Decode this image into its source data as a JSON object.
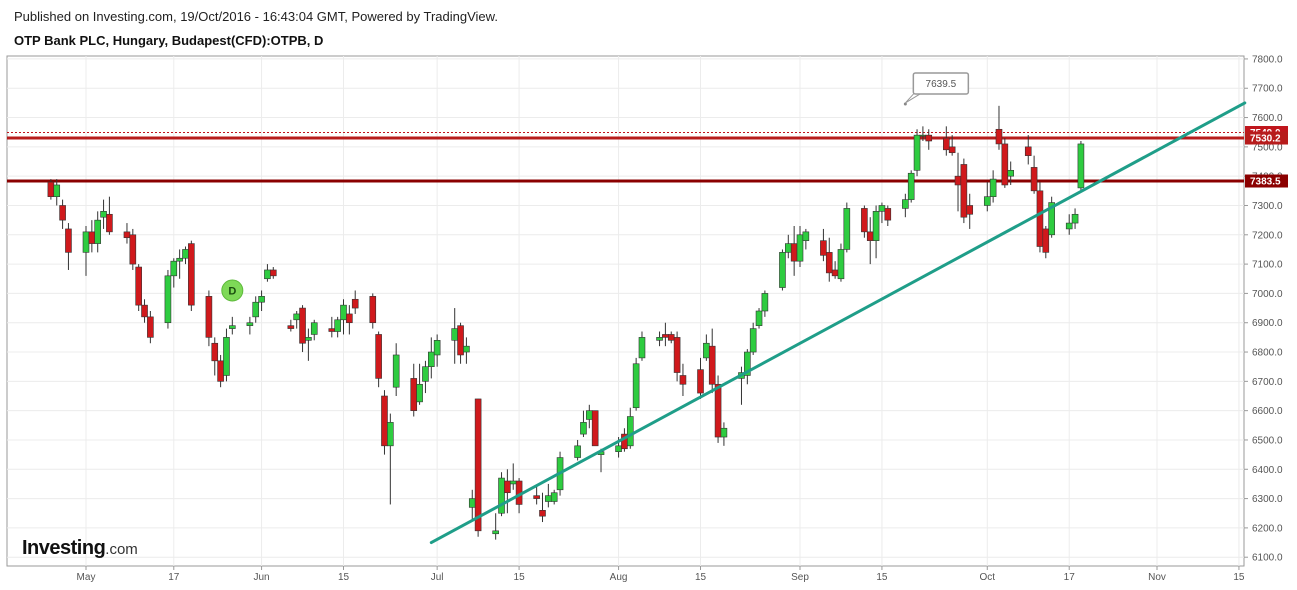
{
  "header": {
    "published": "Published on Investing.com, 19/Oct/2016 - 16:43:04 GMT, Powered by TradingView.",
    "title": "OTP Bank PLC, Hungary, Budapest(CFD):OTPB, D"
  },
  "logo": {
    "brand": "Investing",
    "suffix": ".com"
  },
  "chart_data": {
    "type": "candlestick",
    "ylim": [
      6070,
      7810
    ],
    "yticks": [
      6100,
      6200,
      6300,
      6400,
      6500,
      6600,
      6700,
      6800,
      6900,
      7000,
      7100,
      7200,
      7300,
      7400,
      7500,
      7600,
      7700,
      7800
    ],
    "ytick_labels": [
      "6100.0",
      "6200.0",
      "6300.0",
      "6400.0",
      "6500.0",
      "6600.0",
      "6700.0",
      "6800.0",
      "6900.0",
      "7000.0",
      "7100.0",
      "7200.0",
      "7300.0",
      "7400.0",
      "7500.0",
      "7600.0",
      "7700.0",
      "7800.0"
    ],
    "xticks": [
      {
        "label": "May",
        "date": "2016-05-02"
      },
      {
        "label": "17",
        "date": "2016-05-17"
      },
      {
        "label": "Jun",
        "date": "2016-06-01"
      },
      {
        "label": "15",
        "date": "2016-06-15"
      },
      {
        "label": "Jul",
        "date": "2016-07-01"
      },
      {
        "label": "15",
        "date": "2016-07-15"
      },
      {
        "label": "Aug",
        "date": "2016-08-01"
      },
      {
        "label": "15",
        "date": "2016-08-15"
      },
      {
        "label": "Sep",
        "date": "2016-09-01"
      },
      {
        "label": "15",
        "date": "2016-09-15"
      },
      {
        "label": "Oct",
        "date": "2016-10-03"
      },
      {
        "label": "17",
        "date": "2016-10-17"
      },
      {
        "label": "Nov",
        "date": "2016-11-01"
      },
      {
        "label": "15",
        "date": "2016-11-15"
      }
    ],
    "horizontal_lines": [
      {
        "value": 7549.0,
        "label": "7549.0",
        "style": "dotted",
        "color": "#c0161d"
      },
      {
        "value": 7530.2,
        "label": "7530.2",
        "style": "solid",
        "color": "#b71c1c"
      },
      {
        "value": 7383.5,
        "label": "7383.5",
        "style": "solid",
        "color": "#8b0000"
      }
    ],
    "trendline": {
      "start": {
        "date": "2016-06-30",
        "value": 6150
      },
      "end": {
        "date": "2016-11-16",
        "value": 7650
      },
      "color": "#1f9e89"
    },
    "callout": {
      "date": "2016-09-19",
      "value": 7639.5,
      "label": "7639.5"
    },
    "dividend_marker": {
      "date": "2016-05-27",
      "value": 7010,
      "label": "D"
    },
    "colors": {
      "up": "#2ecc40",
      "down": "#d0191c",
      "outline": "#333333"
    },
    "candles": [
      {
        "d": "2016-04-26",
        "o": 7380,
        "h": 7390,
        "l": 7320,
        "c": 7330
      },
      {
        "d": "2016-04-27",
        "o": 7330,
        "h": 7390,
        "l": 7300,
        "c": 7370
      },
      {
        "d": "2016-04-28",
        "o": 7300,
        "h": 7320,
        "l": 7220,
        "c": 7250
      },
      {
        "d": "2016-04-29",
        "o": 7220,
        "h": 7240,
        "l": 7080,
        "c": 7140
      },
      {
        "d": "2016-05-02",
        "o": 7140,
        "h": 7230,
        "l": 7060,
        "c": 7210
      },
      {
        "d": "2016-05-03",
        "o": 7210,
        "h": 7250,
        "l": 7140,
        "c": 7170
      },
      {
        "d": "2016-05-04",
        "o": 7170,
        "h": 7280,
        "l": 7140,
        "c": 7250
      },
      {
        "d": "2016-05-05",
        "o": 7260,
        "h": 7320,
        "l": 7220,
        "c": 7280
      },
      {
        "d": "2016-05-06",
        "o": 7270,
        "h": 7330,
        "l": 7200,
        "c": 7210
      },
      {
        "d": "2016-05-09",
        "o": 7210,
        "h": 7240,
        "l": 7170,
        "c": 7190
      },
      {
        "d": "2016-05-10",
        "o": 7200,
        "h": 7220,
        "l": 7080,
        "c": 7100
      },
      {
        "d": "2016-05-11",
        "o": 7090,
        "h": 7100,
        "l": 6940,
        "c": 6960
      },
      {
        "d": "2016-05-12",
        "o": 6960,
        "h": 6980,
        "l": 6900,
        "c": 6920
      },
      {
        "d": "2016-05-13",
        "o": 6920,
        "h": 6940,
        "l": 6830,
        "c": 6850
      },
      {
        "d": "2016-05-16",
        "o": 6900,
        "h": 7080,
        "l": 6880,
        "c": 7060
      },
      {
        "d": "2016-05-17",
        "o": 7060,
        "h": 7120,
        "l": 7020,
        "c": 7110
      },
      {
        "d": "2016-05-18",
        "o": 7110,
        "h": 7150,
        "l": 7050,
        "c": 7120
      },
      {
        "d": "2016-05-19",
        "o": 7120,
        "h": 7160,
        "l": 7100,
        "c": 7150
      },
      {
        "d": "2016-05-20",
        "o": 7170,
        "h": 7180,
        "l": 6940,
        "c": 6960
      },
      {
        "d": "2016-05-23",
        "o": 6990,
        "h": 7010,
        "l": 6820,
        "c": 6850
      },
      {
        "d": "2016-05-24",
        "o": 6830,
        "h": 6850,
        "l": 6720,
        "c": 6770
      },
      {
        "d": "2016-05-25",
        "o": 6770,
        "h": 6790,
        "l": 6680,
        "c": 6700
      },
      {
        "d": "2016-05-26",
        "o": 6720,
        "h": 6880,
        "l": 6700,
        "c": 6850
      },
      {
        "d": "2016-05-27",
        "o": 6880,
        "h": 6920,
        "l": 6860,
        "c": 6890
      },
      {
        "d": "2016-05-30",
        "o": 6890,
        "h": 6920,
        "l": 6860,
        "c": 6900
      },
      {
        "d": "2016-05-31",
        "o": 6920,
        "h": 6990,
        "l": 6900,
        "c": 6970
      },
      {
        "d": "2016-06-01",
        "o": 6970,
        "h": 7010,
        "l": 6940,
        "c": 6990
      },
      {
        "d": "2016-06-02",
        "o": 7050,
        "h": 7100,
        "l": 7040,
        "c": 7080
      },
      {
        "d": "2016-06-03",
        "o": 7080,
        "h": 7090,
        "l": 7050,
        "c": 7060
      },
      {
        "d": "2016-06-06",
        "o": 6890,
        "h": 6910,
        "l": 6870,
        "c": 6880
      },
      {
        "d": "2016-06-07",
        "o": 6910,
        "h": 6940,
        "l": 6880,
        "c": 6930
      },
      {
        "d": "2016-06-08",
        "o": 6950,
        "h": 6960,
        "l": 6800,
        "c": 6830
      },
      {
        "d": "2016-06-09",
        "o": 6840,
        "h": 6880,
        "l": 6770,
        "c": 6850
      },
      {
        "d": "2016-06-10",
        "o": 6860,
        "h": 6910,
        "l": 6840,
        "c": 6900
      },
      {
        "d": "2016-06-13",
        "o": 6880,
        "h": 6920,
        "l": 6850,
        "c": 6870
      },
      {
        "d": "2016-06-14",
        "o": 6870,
        "h": 6920,
        "l": 6850,
        "c": 6910
      },
      {
        "d": "2016-06-15",
        "o": 6910,
        "h": 6980,
        "l": 6860,
        "c": 6960
      },
      {
        "d": "2016-06-16",
        "o": 6930,
        "h": 6960,
        "l": 6860,
        "c": 6900
      },
      {
        "d": "2016-06-17",
        "o": 6980,
        "h": 7010,
        "l": 6930,
        "c": 6950
      },
      {
        "d": "2016-06-20",
        "o": 6990,
        "h": 7000,
        "l": 6880,
        "c": 6900
      },
      {
        "d": "2016-06-21",
        "o": 6860,
        "h": 6870,
        "l": 6680,
        "c": 6710
      },
      {
        "d": "2016-06-22",
        "o": 6650,
        "h": 6670,
        "l": 6450,
        "c": 6480
      },
      {
        "d": "2016-06-23",
        "o": 6480,
        "h": 6590,
        "l": 6280,
        "c": 6560
      },
      {
        "d": "2016-06-24",
        "o": 6680,
        "h": 6830,
        "l": 6650,
        "c": 6790
      },
      {
        "d": "2016-06-27",
        "o": 6710,
        "h": 6760,
        "l": 6580,
        "c": 6600
      },
      {
        "d": "2016-06-28",
        "o": 6630,
        "h": 6760,
        "l": 6620,
        "c": 6690
      },
      {
        "d": "2016-06-29",
        "o": 6700,
        "h": 6770,
        "l": 6660,
        "c": 6750
      },
      {
        "d": "2016-06-30",
        "o": 6750,
        "h": 6850,
        "l": 6710,
        "c": 6800
      },
      {
        "d": "2016-07-01",
        "o": 6790,
        "h": 6860,
        "l": 6750,
        "c": 6840
      },
      {
        "d": "2016-07-04",
        "o": 6840,
        "h": 6950,
        "l": 6760,
        "c": 6880
      },
      {
        "d": "2016-07-05",
        "o": 6890,
        "h": 6900,
        "l": 6760,
        "c": 6790
      },
      {
        "d": "2016-07-06",
        "o": 6800,
        "h": 6850,
        "l": 6760,
        "c": 6820
      },
      {
        "d": "2016-07-07",
        "o": 6270,
        "h": 6330,
        "l": 6230,
        "c": 6300
      },
      {
        "d": "2016-07-08",
        "o": 6640,
        "h": 6640,
        "l": 6170,
        "c": 6190
      },
      {
        "d": "2016-07-11",
        "o": 6180,
        "h": 6250,
        "l": 6160,
        "c": 6190
      },
      {
        "d": "2016-07-12",
        "o": 6250,
        "h": 6390,
        "l": 6240,
        "c": 6370
      },
      {
        "d": "2016-07-13",
        "o": 6360,
        "h": 6400,
        "l": 6250,
        "c": 6320
      },
      {
        "d": "2016-07-14",
        "o": 6350,
        "h": 6420,
        "l": 6330,
        "c": 6360
      },
      {
        "d": "2016-07-15",
        "o": 6360,
        "h": 6370,
        "l": 6250,
        "c": 6280
      },
      {
        "d": "2016-07-18",
        "o": 6310,
        "h": 6340,
        "l": 6280,
        "c": 6300
      },
      {
        "d": "2016-07-19",
        "o": 6260,
        "h": 6320,
        "l": 6220,
        "c": 6240
      },
      {
        "d": "2016-07-20",
        "o": 6290,
        "h": 6350,
        "l": 6270,
        "c": 6310
      },
      {
        "d": "2016-07-21",
        "o": 6290,
        "h": 6330,
        "l": 6280,
        "c": 6320
      },
      {
        "d": "2016-07-22",
        "o": 6330,
        "h": 6460,
        "l": 6310,
        "c": 6440
      },
      {
        "d": "2016-07-25",
        "o": 6440,
        "h": 6500,
        "l": 6430,
        "c": 6480
      },
      {
        "d": "2016-07-26",
        "o": 6520,
        "h": 6600,
        "l": 6510,
        "c": 6560
      },
      {
        "d": "2016-07-27",
        "o": 6570,
        "h": 6620,
        "l": 6540,
        "c": 6600
      },
      {
        "d": "2016-07-28",
        "o": 6600,
        "h": 6600,
        "l": 6490,
        "c": 6480
      },
      {
        "d": "2016-07-29",
        "o": 6450,
        "h": 6470,
        "l": 6390,
        "c": 6460
      },
      {
        "d": "2016-08-01",
        "o": 6460,
        "h": 6510,
        "l": 6440,
        "c": 6480
      },
      {
        "d": "2016-08-02",
        "o": 6520,
        "h": 6540,
        "l": 6460,
        "c": 6470
      },
      {
        "d": "2016-08-03",
        "o": 6480,
        "h": 6610,
        "l": 6470,
        "c": 6580
      },
      {
        "d": "2016-08-04",
        "o": 6610,
        "h": 6780,
        "l": 6600,
        "c": 6760
      },
      {
        "d": "2016-08-05",
        "o": 6780,
        "h": 6870,
        "l": 6770,
        "c": 6850
      },
      {
        "d": "2016-08-08",
        "o": 6840,
        "h": 6870,
        "l": 6820,
        "c": 6850
      },
      {
        "d": "2016-08-09",
        "o": 6860,
        "h": 6900,
        "l": 6820,
        "c": 6850
      },
      {
        "d": "2016-08-10",
        "o": 6860,
        "h": 6870,
        "l": 6830,
        "c": 6840
      },
      {
        "d": "2016-08-11",
        "o": 6850,
        "h": 6870,
        "l": 6700,
        "c": 6730
      },
      {
        "d": "2016-08-12",
        "o": 6720,
        "h": 6760,
        "l": 6650,
        "c": 6690
      },
      {
        "d": "2016-08-15",
        "o": 6740,
        "h": 6780,
        "l": 6640,
        "c": 6660
      },
      {
        "d": "2016-08-16",
        "o": 6780,
        "h": 6860,
        "l": 6770,
        "c": 6830
      },
      {
        "d": "2016-08-17",
        "o": 6820,
        "h": 6880,
        "l": 6660,
        "c": 6690
      },
      {
        "d": "2016-08-18",
        "o": 6690,
        "h": 6720,
        "l": 6490,
        "c": 6510
      },
      {
        "d": "2016-08-19",
        "o": 6510,
        "h": 6560,
        "l": 6480,
        "c": 6540
      },
      {
        "d": "2016-08-22",
        "o": 6710,
        "h": 6750,
        "l": 6620,
        "c": 6730
      },
      {
        "d": "2016-08-23",
        "o": 6720,
        "h": 6810,
        "l": 6690,
        "c": 6800
      },
      {
        "d": "2016-08-24",
        "o": 6800,
        "h": 6900,
        "l": 6790,
        "c": 6880
      },
      {
        "d": "2016-08-25",
        "o": 6890,
        "h": 6950,
        "l": 6880,
        "c": 6940
      },
      {
        "d": "2016-08-26",
        "o": 6940,
        "h": 7010,
        "l": 6920,
        "c": 7000
      },
      {
        "d": "2016-08-29",
        "o": 7020,
        "h": 7150,
        "l": 7010,
        "c": 7140
      },
      {
        "d": "2016-08-30",
        "o": 7140,
        "h": 7200,
        "l": 7120,
        "c": 7170
      },
      {
        "d": "2016-08-31",
        "o": 7170,
        "h": 7230,
        "l": 7060,
        "c": 7110
      },
      {
        "d": "2016-09-01",
        "o": 7110,
        "h": 7230,
        "l": 7090,
        "c": 7200
      },
      {
        "d": "2016-09-02",
        "o": 7180,
        "h": 7220,
        "l": 7150,
        "c": 7210
      },
      {
        "d": "2016-09-05",
        "o": 7180,
        "h": 7220,
        "l": 7110,
        "c": 7130
      },
      {
        "d": "2016-09-06",
        "o": 7140,
        "h": 7190,
        "l": 7040,
        "c": 7070
      },
      {
        "d": "2016-09-07",
        "o": 7080,
        "h": 7110,
        "l": 7050,
        "c": 7060
      },
      {
        "d": "2016-09-08",
        "o": 7050,
        "h": 7170,
        "l": 7040,
        "c": 7150
      },
      {
        "d": "2016-09-09",
        "o": 7150,
        "h": 7310,
        "l": 7140,
        "c": 7290
      },
      {
        "d": "2016-09-12",
        "o": 7290,
        "h": 7300,
        "l": 7190,
        "c": 7210
      },
      {
        "d": "2016-09-13",
        "o": 7210,
        "h": 7260,
        "l": 7100,
        "c": 7180
      },
      {
        "d": "2016-09-14",
        "o": 7180,
        "h": 7300,
        "l": 7120,
        "c": 7280
      },
      {
        "d": "2016-09-15",
        "o": 7280,
        "h": 7310,
        "l": 7240,
        "c": 7300
      },
      {
        "d": "2016-09-16",
        "o": 7290,
        "h": 7300,
        "l": 7230,
        "c": 7250
      },
      {
        "d": "2016-09-19",
        "o": 7290,
        "h": 7340,
        "l": 7260,
        "c": 7320
      },
      {
        "d": "2016-09-20",
        "o": 7320,
        "h": 7420,
        "l": 7310,
        "c": 7410
      },
      {
        "d": "2016-09-21",
        "o": 7420,
        "h": 7560,
        "l": 7400,
        "c": 7540
      },
      {
        "d": "2016-09-22",
        "o": 7540,
        "h": 7570,
        "l": 7520,
        "c": 7540
      },
      {
        "d": "2016-09-23",
        "o": 7540,
        "h": 7560,
        "l": 7490,
        "c": 7520
      },
      {
        "d": "2016-09-26",
        "o": 7530,
        "h": 7570,
        "l": 7470,
        "c": 7490
      },
      {
        "d": "2016-09-27",
        "o": 7500,
        "h": 7540,
        "l": 7470,
        "c": 7480
      },
      {
        "d": "2016-09-28",
        "o": 7400,
        "h": 7480,
        "l": 7280,
        "c": 7370
      },
      {
        "d": "2016-09-29",
        "o": 7440,
        "h": 7460,
        "l": 7240,
        "c": 7260
      },
      {
        "d": "2016-09-30",
        "o": 7300,
        "h": 7340,
        "l": 7220,
        "c": 7270
      },
      {
        "d": "2016-10-03",
        "o": 7300,
        "h": 7380,
        "l": 7280,
        "c": 7330
      },
      {
        "d": "2016-10-04",
        "o": 7330,
        "h": 7420,
        "l": 7310,
        "c": 7390
      },
      {
        "d": "2016-10-05",
        "o": 7560,
        "h": 7640,
        "l": 7490,
        "c": 7510
      },
      {
        "d": "2016-10-06",
        "o": 7510,
        "h": 7530,
        "l": 7360,
        "c": 7370
      },
      {
        "d": "2016-10-07",
        "o": 7400,
        "h": 7450,
        "l": 7370,
        "c": 7420
      },
      {
        "d": "2016-10-10",
        "o": 7500,
        "h": 7540,
        "l": 7440,
        "c": 7470
      },
      {
        "d": "2016-10-11",
        "o": 7430,
        "h": 7470,
        "l": 7340,
        "c": 7350
      },
      {
        "d": "2016-10-12",
        "o": 7350,
        "h": 7380,
        "l": 7140,
        "c": 7160
      },
      {
        "d": "2016-10-13",
        "o": 7220,
        "h": 7230,
        "l": 7120,
        "c": 7140
      },
      {
        "d": "2016-10-14",
        "o": 7200,
        "h": 7330,
        "l": 7190,
        "c": 7310
      },
      {
        "d": "2016-10-17",
        "o": 7220,
        "h": 7270,
        "l": 7200,
        "c": 7240
      },
      {
        "d": "2016-10-18",
        "o": 7240,
        "h": 7290,
        "l": 7220,
        "c": 7270
      },
      {
        "d": "2016-10-19",
        "o": 7360,
        "h": 7520,
        "l": 7350,
        "c": 7510
      }
    ]
  }
}
